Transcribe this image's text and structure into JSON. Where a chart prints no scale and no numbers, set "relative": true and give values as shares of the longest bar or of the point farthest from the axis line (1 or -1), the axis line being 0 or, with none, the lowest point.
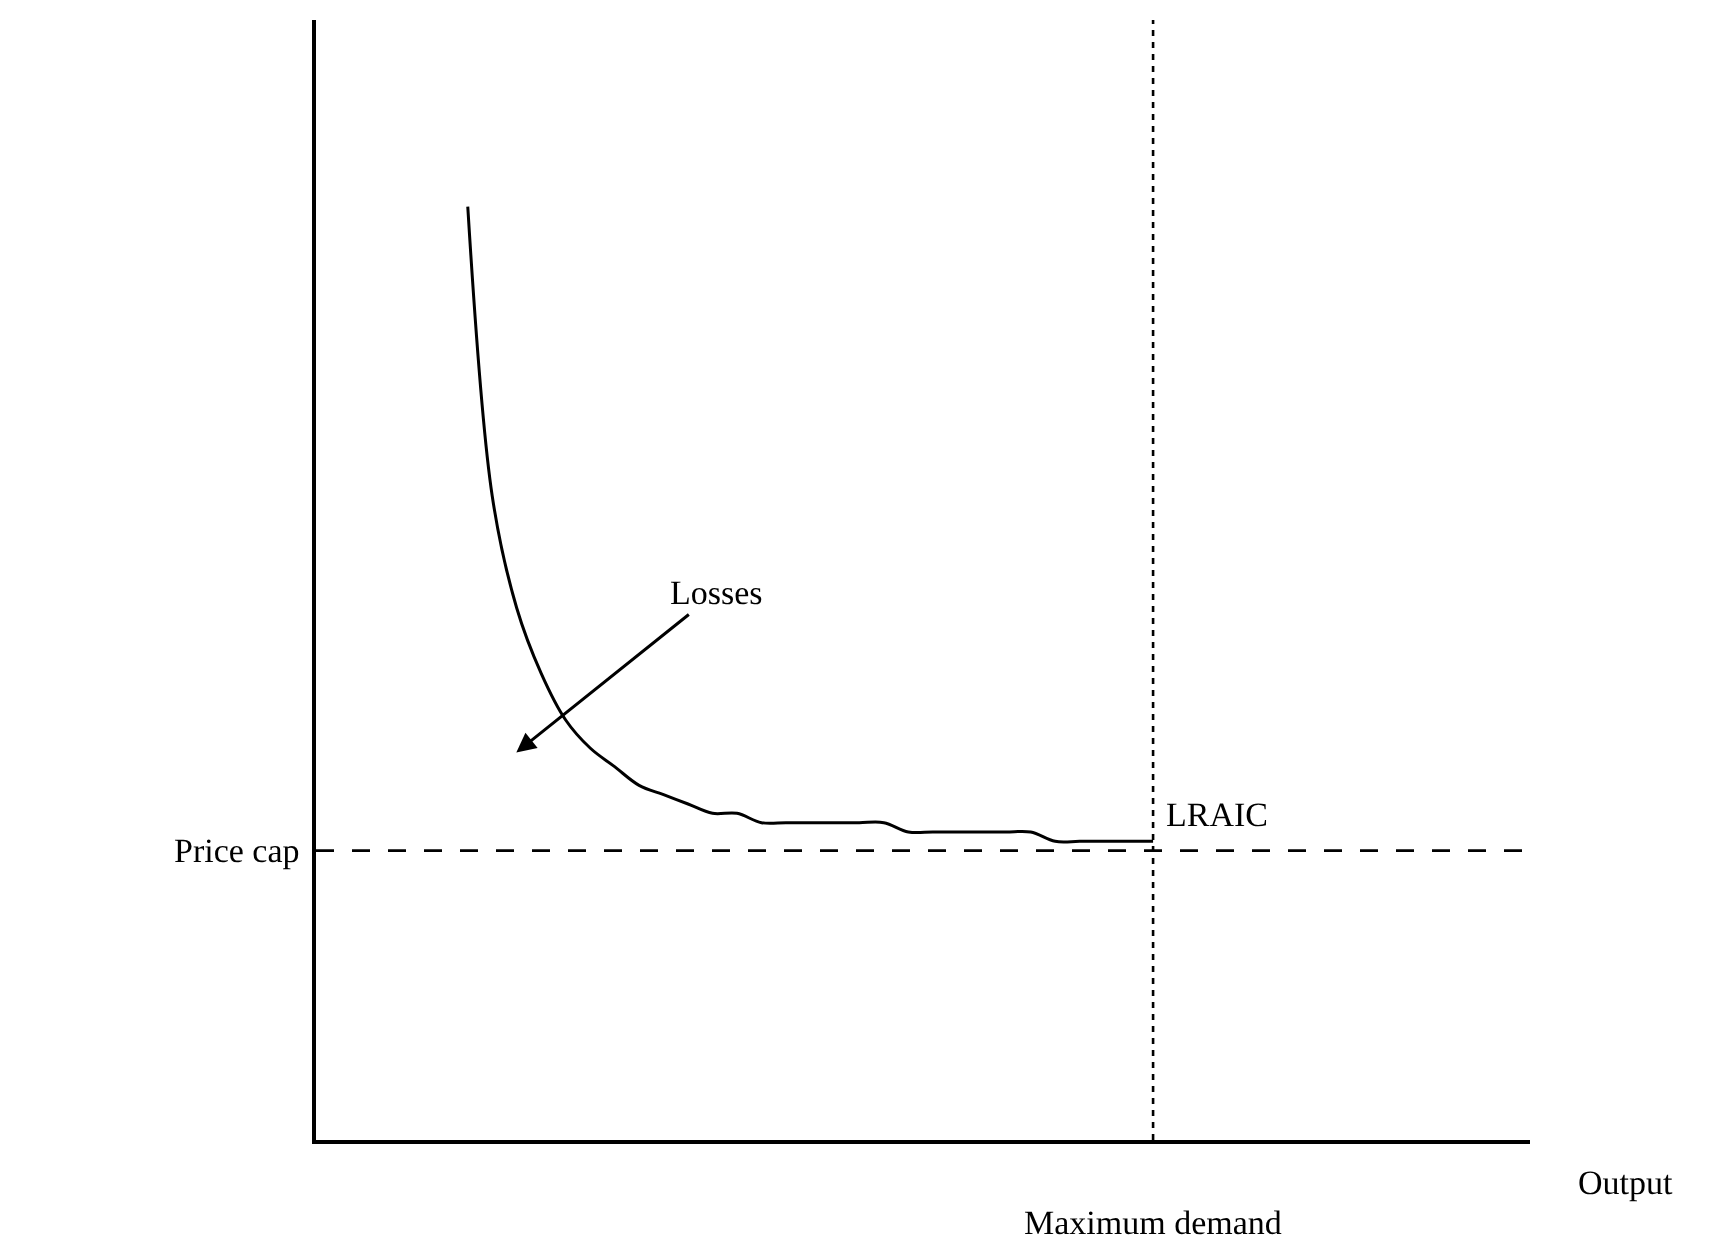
{
  "chart_data": {
    "type": "line",
    "relative": true,
    "categories": [
      null,
      null,
      null,
      null,
      null,
      null,
      null,
      null,
      null,
      null,
      null,
      null,
      null,
      null,
      null,
      null,
      null,
      null,
      null,
      null,
      null,
      null,
      null,
      null,
      null,
      null,
      null,
      null,
      null
    ],
    "series": [
      {
        "name": "LRAIC",
        "color": "#000000",
        "values": [
          1.0,
          0.69,
          0.57,
          0.5,
          0.45,
          0.42,
          0.4,
          0.38,
          0.37,
          0.36,
          0.35,
          0.35,
          0.34,
          0.34,
          0.34,
          0.34,
          0.34,
          0.34,
          0.33,
          0.33,
          0.33,
          0.33,
          0.33,
          0.33,
          0.32,
          0.32,
          0.32,
          0.32,
          0.32
        ]
      }
    ],
    "ref_lines": [
      {
        "axis": "y",
        "value": 0.31,
        "label": "Price cap",
        "color": "#000000",
        "line_style": "dashed"
      }
    ],
    "annotations": [
      "Losses",
      "Maximum demand",
      "Output"
    ],
    "legend": false,
    "marker": "none",
    "line_style": "solid"
  }
}
